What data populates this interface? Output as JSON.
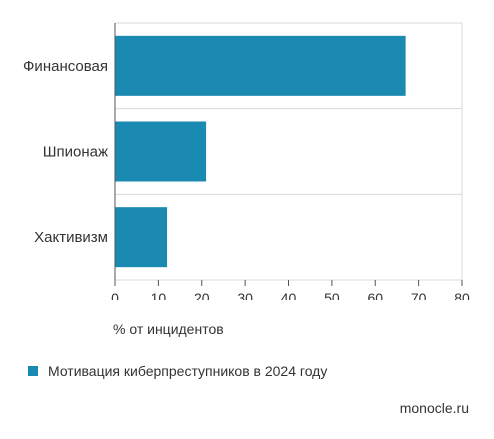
{
  "chart_data": {
    "type": "bar",
    "orientation": "horizontal",
    "categories": [
      "Финансовая",
      "Шпионаж",
      "Хактивизм"
    ],
    "values": [
      67,
      21,
      12
    ],
    "xlabel": "% от инцидентов",
    "ylabel": "",
    "xlim": [
      0,
      80
    ],
    "xticks": [
      0,
      10,
      20,
      30,
      40,
      50,
      60,
      70,
      80
    ],
    "grid": true,
    "legend": "bottom-left",
    "series": [
      {
        "name": "Мотивация киберпреступников в 2024 году",
        "values": [
          67,
          21,
          12
        ],
        "color": "#1a8ab3"
      }
    ]
  },
  "colors": {
    "bar": "#1a8ab3",
    "grid": "#d9d9d9",
    "axis": "#555555"
  },
  "source": "monocle.ru"
}
